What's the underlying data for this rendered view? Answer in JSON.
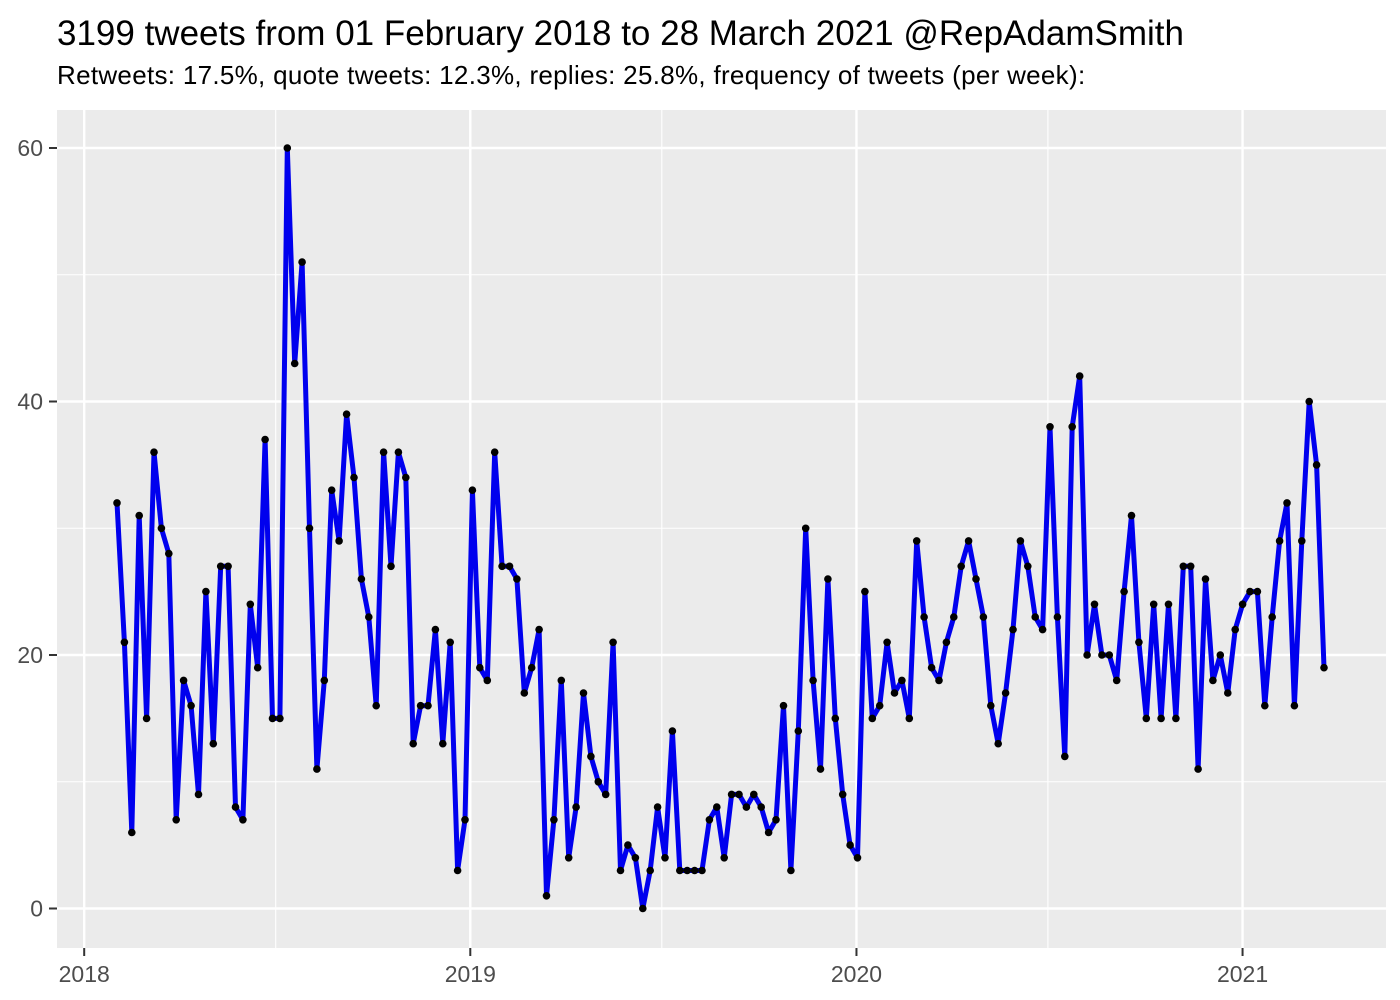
{
  "header": {
    "title": "3199 tweets from 01 February 2018 to 28 March 2021 @RepAdamSmith",
    "subtitle": "Retweets: 17.5%, quote tweets: 12.3%, replies: 25.8%, frequency of tweets (per week):"
  },
  "chart_data": {
    "type": "line",
    "title": "3199 tweets from 01 February 2018 to 28 March 2021 @RepAdamSmith",
    "subtitle": "Retweets: 17.5%, quote tweets: 12.3%, replies: 25.8%, frequency of tweets (per week):",
    "series_name": "tweets per week",
    "x_unit": "week",
    "x_start_date": "2018-02-01",
    "x_end_date": "2021-03-28",
    "x_tick_labels": [
      "2018",
      "2019",
      "2020",
      "2021"
    ],
    "x_tick_week_positions": [
      -4.43,
      47.71,
      99.86,
      152.0
    ],
    "x_minor_week_positions": [
      21.43,
      73.57,
      125.71
    ],
    "y_ticks": [
      0,
      20,
      40,
      60
    ],
    "y_minor_ticks": [
      10,
      30,
      50
    ],
    "ylim": [
      0,
      60
    ],
    "xlabel": "",
    "ylabel": "",
    "grid": "major-and-minor",
    "legend_position": "none",
    "values": [
      32,
      21,
      6,
      31,
      15,
      36,
      30,
      28,
      7,
      18,
      16,
      9,
      25,
      13,
      27,
      27,
      8,
      7,
      24,
      19,
      37,
      15,
      15,
      60,
      43,
      51,
      30,
      11,
      18,
      33,
      29,
      39,
      34,
      26,
      23,
      16,
      36,
      27,
      36,
      34,
      13,
      16,
      16,
      22,
      13,
      21,
      3,
      7,
      33,
      19,
      18,
      36,
      27,
      27,
      26,
      17,
      19,
      22,
      1,
      7,
      18,
      4,
      8,
      17,
      12,
      10,
      9,
      21,
      3,
      5,
      4,
      0,
      3,
      8,
      4,
      14,
      3,
      3,
      3,
      3,
      7,
      8,
      4,
      9,
      9,
      8,
      9,
      8,
      6,
      7,
      16,
      3,
      14,
      30,
      18,
      11,
      26,
      15,
      9,
      5,
      4,
      25,
      15,
      16,
      21,
      17,
      18,
      15,
      29,
      23,
      19,
      18,
      21,
      23,
      27,
      29,
      26,
      23,
      16,
      13,
      17,
      22,
      29,
      27,
      23,
      22,
      38,
      23,
      12,
      38,
      42,
      20,
      24,
      20,
      20,
      18,
      25,
      31,
      21,
      15,
      24,
      15,
      24,
      15,
      27,
      27,
      11,
      26,
      18,
      20,
      17,
      22,
      24,
      25,
      25,
      16,
      23,
      29,
      32,
      16,
      29,
      40,
      35,
      19
    ],
    "colors": {
      "line": "#0000EE",
      "point": "#000000",
      "panel_background": "#EBEBEB",
      "gridline": "#FFFFFF",
      "axis_text": "#4D4D4D",
      "tick_mark": "#333333",
      "title_text": "#000000",
      "page_background": "#FFFFFF"
    }
  }
}
